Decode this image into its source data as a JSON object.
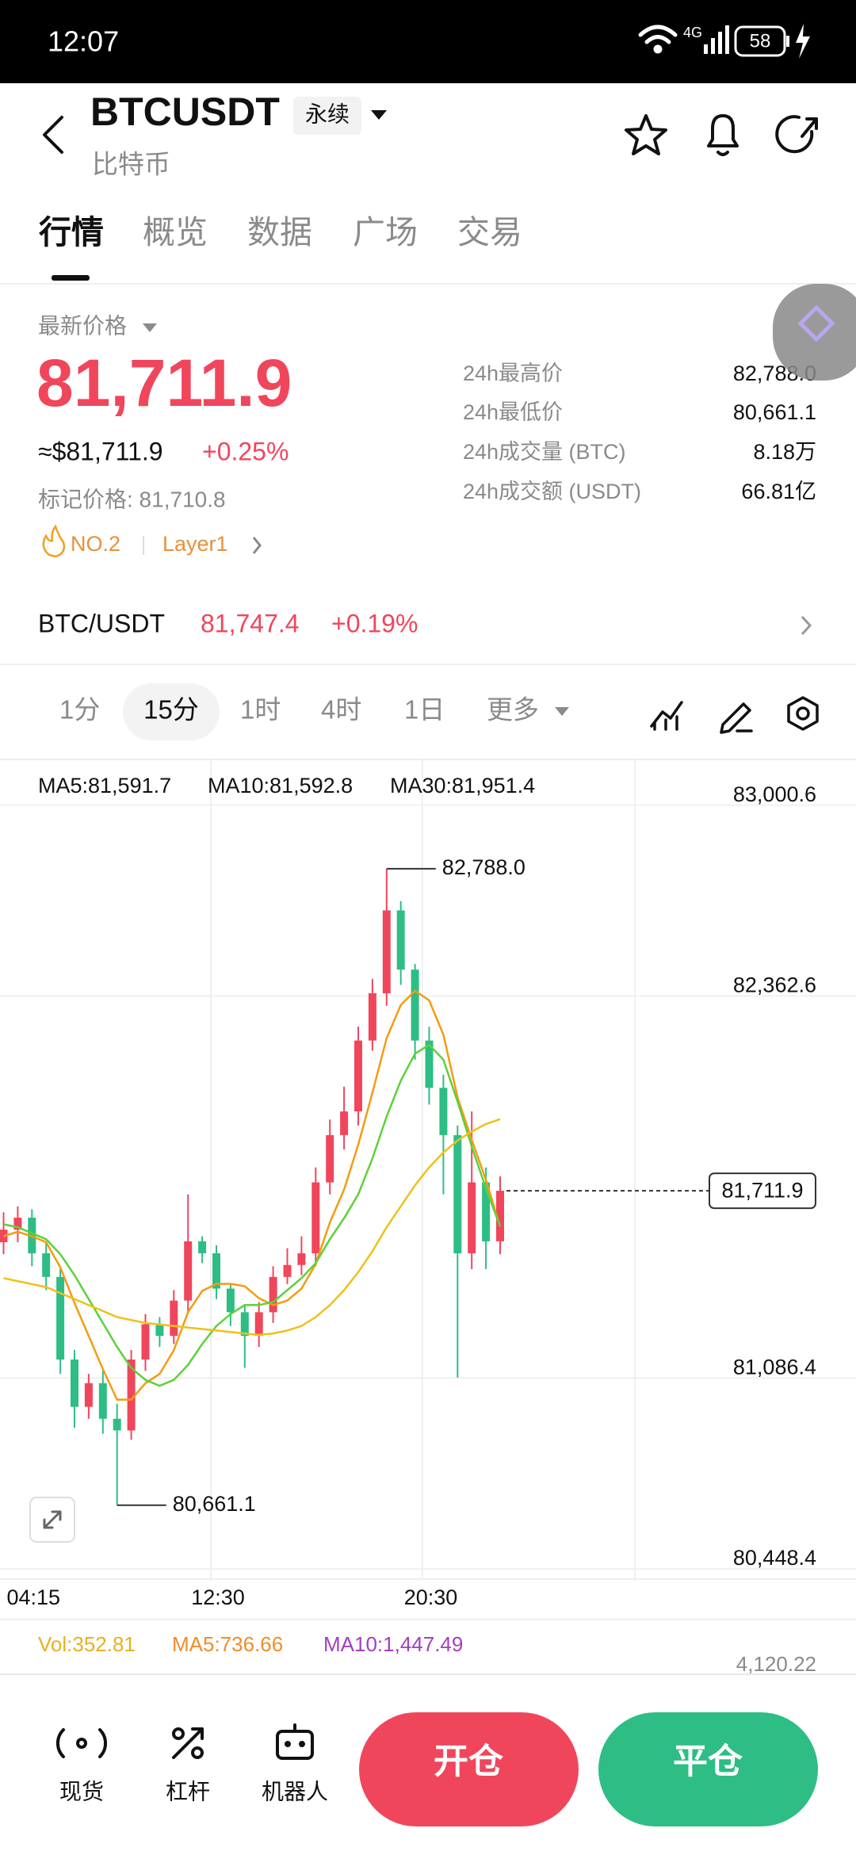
{
  "status_bar": {
    "time": "12:07",
    "network": "4G",
    "battery": "58"
  },
  "header": {
    "symbol": "BTCUSDT",
    "contract_tag": "永续",
    "name": "比特币"
  },
  "tabs": [
    "行情",
    "概览",
    "数据",
    "广场",
    "交易"
  ],
  "price": {
    "label": "最新价格",
    "last": "81,711.9",
    "usd": "≈$81,711.9",
    "change": "+0.25%",
    "mark": "标记价格: 81,710.8",
    "rank": "NO.2",
    "tag": "Layer1"
  },
  "stats": [
    {
      "label": "24h最高价",
      "value": "82,788.0"
    },
    {
      "label": "24h最低价",
      "value": "80,661.1"
    },
    {
      "label": "24h成交量 (BTC)",
      "value": "8.18万"
    },
    {
      "label": "24h成交额 (USDT)",
      "value": "66.81亿"
    }
  ],
  "spot": {
    "pair": "BTC/USDT",
    "price": "81,747.4",
    "change": "+0.19%"
  },
  "intervals": [
    "1分",
    "15分",
    "1时",
    "4时",
    "1日",
    "更多"
  ],
  "chart_data": {
    "type": "candlestick",
    "categories": [
      null,
      null,
      "04:15",
      null,
      null,
      null,
      null,
      null,
      null,
      null,
      null,
      null,
      null,
      null,
      null,
      "12:30",
      null,
      null,
      null,
      null,
      null,
      null,
      null,
      null,
      null,
      null,
      null,
      null,
      null,
      null,
      "20:30",
      null,
      null,
      null,
      null,
      null
    ],
    "open": [
      81540,
      81582,
      81622,
      81503,
      81424,
      81148,
      80990,
      81069,
      80950,
      80911,
      81148,
      81266,
      81227,
      81345,
      81543,
      81503,
      81385,
      81306,
      81227,
      81306,
      81424,
      81464,
      81503,
      81740,
      81898,
      81977,
      82214,
      82372,
      82649,
      82451,
      82214,
      82056,
      81898,
      81503,
      81740,
      81543
    ],
    "high": [
      81640,
      81660,
      81650,
      81540,
      81450,
      81180,
      81100,
      81110,
      81000,
      81180,
      81300,
      81290,
      81380,
      81700,
      81560,
      81530,
      81400,
      81330,
      81340,
      81460,
      81520,
      81560,
      81790,
      81950,
      82060,
      82260,
      82420,
      82788.0,
      82680,
      82470,
      82260,
      82100,
      81930,
      81977,
      81790,
      81760
    ],
    "low": [
      81500,
      81540,
      81460,
      81380,
      81100,
      80920,
      80950,
      80900,
      80661.1,
      80880,
      81110,
      81190,
      81200,
      81300,
      81470,
      81350,
      81260,
      81120,
      81190,
      81270,
      81400,
      81430,
      81460,
      81700,
      81850,
      81930,
      82180,
      82330,
      82400,
      82150,
      82000,
      81700,
      81088,
      81450,
      81450,
      81500
    ],
    "close": [
      81582,
      81622,
      81503,
      81424,
      81148,
      80990,
      81069,
      80950,
      80911,
      81148,
      81266,
      81227,
      81345,
      81543,
      81503,
      81385,
      81306,
      81227,
      81306,
      81424,
      81464,
      81503,
      81740,
      81898,
      81977,
      82214,
      82372,
      82649,
      82451,
      82214,
      82056,
      81898,
      81503,
      81740,
      81543,
      81711.9
    ],
    "up_color": "#f0465c",
    "down_color": "#2ebd85",
    "series": [
      {
        "name": "MA5:81,591.7",
        "color": "#f39c12",
        "values": [
          81560,
          81575,
          81560,
          81540,
          81456,
          81337,
          81227,
          81116,
          81014,
          81014,
          81069,
          81100,
          81179,
          81306,
          81377,
          81401,
          81401,
          81393,
          81353,
          81330,
          81345,
          81385,
          81467,
          81606,
          81716,
          81866,
          82040,
          82222,
          82333,
          82380,
          82348,
          82234,
          82024,
          81882,
          81748,
          81591.7
        ]
      },
      {
        "name": "MA10:81,592.8",
        "color": "#5cd13a",
        "values": [
          81600,
          81590,
          81570,
          81550,
          81500,
          81430,
          81350,
          81270,
          81190,
          81120,
          81080,
          81060,
          81080,
          81130,
          81200,
          81260,
          81300,
          81330,
          81330,
          81340,
          81380,
          81420,
          81470,
          81550,
          81620,
          81700,
          81820,
          81960,
          82080,
          82170,
          82200,
          82150,
          82010,
          81860,
          81720,
          81592.8
        ]
      },
      {
        "name": "MA30:81,951.4",
        "color": "#eec11a",
        "values": [
          81420,
          81410,
          81400,
          81390,
          81370,
          81350,
          81330,
          81310,
          81290,
          81280,
          81270,
          81265,
          81260,
          81255,
          81250,
          81245,
          81240,
          81235,
          81230,
          81235,
          81245,
          81260,
          81290,
          81330,
          81380,
          81440,
          81510,
          81590,
          81660,
          81730,
          81790,
          81840,
          81880,
          81910,
          81935,
          81951.4
        ]
      }
    ],
    "ylim": [
      80416.8,
      83142.8
    ],
    "yticks": [
      {
        "value": 83000.6,
        "label": "83,000.6"
      },
      {
        "value": 82362.6,
        "label": "82,362.6"
      },
      {
        "value": 81086.4,
        "label": "81,086.4"
      },
      {
        "value": 80448.4,
        "label": "80,448.4"
      }
    ],
    "current_price": {
      "value": 81711.9,
      "label": "81,711.9"
    },
    "high_marker": {
      "value": 82788.0,
      "label": "82,788.0"
    },
    "low_marker": {
      "value": 80661.1,
      "label": "80,661.1"
    }
  },
  "volume": {
    "vol": "Vol:352.81",
    "ma5": "MA5:736.66",
    "ma10": "MA10:1,447.49",
    "axis_label": "4,120.22"
  },
  "bottom_nav": [
    "现货",
    "杠杆",
    "机器人"
  ],
  "actions": [
    "开仓",
    "平仓"
  ]
}
